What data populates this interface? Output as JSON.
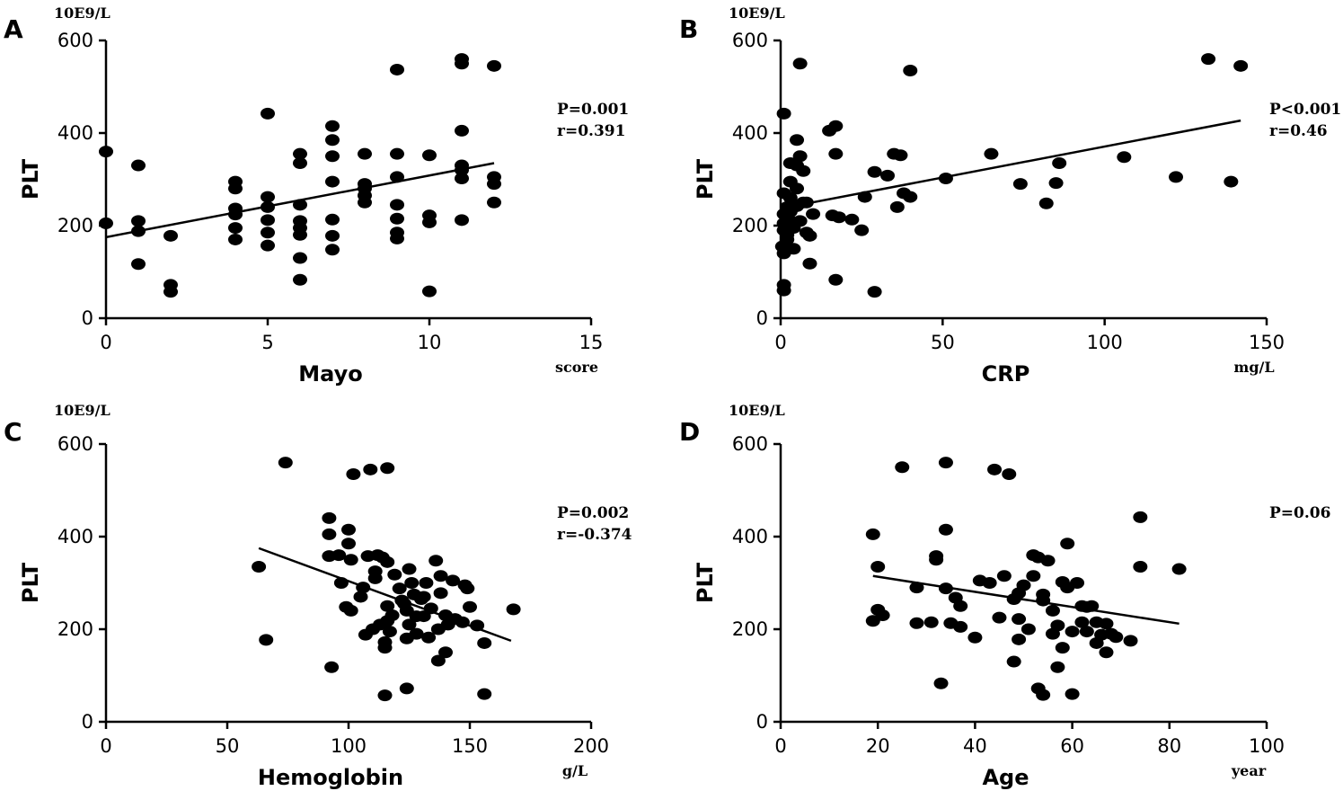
{
  "chart_data": [
    {
      "type": "scatter",
      "panel": "A",
      "y_unit": "10E9/L",
      "ylabel": "PLT",
      "xlabel": "Mayo",
      "x_unit": "score",
      "xlim": [
        0,
        15
      ],
      "ylim": [
        0,
        600
      ],
      "xticks": [
        "0",
        "5",
        "10",
        "15"
      ],
      "yticks": [
        "0",
        "200",
        "400",
        "600"
      ],
      "stats": [
        "P=0.001",
        "r=0.391"
      ],
      "regression": [
        [
          0,
          175
        ],
        [
          12,
          335
        ]
      ],
      "points": [
        [
          0,
          360
        ],
        [
          0,
          205
        ],
        [
          1,
          330
        ],
        [
          1,
          210
        ],
        [
          1,
          188
        ],
        [
          1,
          117
        ],
        [
          2,
          178
        ],
        [
          2,
          72
        ],
        [
          2,
          57
        ],
        [
          4,
          295
        ],
        [
          4,
          280
        ],
        [
          4,
          237
        ],
        [
          4,
          224
        ],
        [
          4,
          195
        ],
        [
          4,
          170
        ],
        [
          5,
          442
        ],
        [
          5,
          262
        ],
        [
          5,
          240
        ],
        [
          5,
          212
        ],
        [
          5,
          185
        ],
        [
          5,
          157
        ],
        [
          6,
          355
        ],
        [
          6,
          335
        ],
        [
          6,
          245
        ],
        [
          6,
          210
        ],
        [
          6,
          195
        ],
        [
          6,
          180
        ],
        [
          6,
          130
        ],
        [
          6,
          83
        ],
        [
          7,
          415
        ],
        [
          7,
          385
        ],
        [
          7,
          350
        ],
        [
          7,
          295
        ],
        [
          7,
          213
        ],
        [
          7,
          178
        ],
        [
          7,
          148
        ],
        [
          8,
          355
        ],
        [
          8,
          290
        ],
        [
          8,
          280
        ],
        [
          8,
          265
        ],
        [
          8,
          250
        ],
        [
          9,
          537
        ],
        [
          9,
          355
        ],
        [
          9,
          305
        ],
        [
          9,
          245
        ],
        [
          9,
          215
        ],
        [
          9,
          185
        ],
        [
          9,
          172
        ],
        [
          10,
          352
        ],
        [
          10,
          222
        ],
        [
          10,
          207
        ],
        [
          10,
          58
        ],
        [
          11,
          560
        ],
        [
          11,
          550
        ],
        [
          11,
          405
        ],
        [
          11,
          330
        ],
        [
          11,
          320
        ],
        [
          11,
          302
        ],
        [
          11,
          212
        ],
        [
          12,
          545
        ],
        [
          12,
          305
        ],
        [
          12,
          290
        ],
        [
          12,
          250
        ]
      ]
    },
    {
      "type": "scatter",
      "panel": "B",
      "y_unit": "10E9/L",
      "ylabel": "PLT",
      "xlabel": "CRP",
      "x_unit": "mg/L",
      "xlim": [
        0,
        150
      ],
      "ylim": [
        0,
        600
      ],
      "xticks": [
        "0",
        "50",
        "100",
        "150"
      ],
      "yticks": [
        "0",
        "200",
        "400",
        "600"
      ],
      "stats": [
        "P<0.001",
        "r=0.46"
      ],
      "regression": [
        [
          0,
          237
        ],
        [
          142,
          427
        ]
      ],
      "points": [
        [
          0.5,
          155
        ],
        [
          1,
          442
        ],
        [
          1,
          270
        ],
        [
          1,
          225
        ],
        [
          1,
          205
        ],
        [
          1,
          190
        ],
        [
          1,
          140
        ],
        [
          1,
          72
        ],
        [
          1,
          60
        ],
        [
          2,
          240
        ],
        [
          2,
          215
        ],
        [
          2,
          200
        ],
        [
          2,
          180
        ],
        [
          2,
          170
        ],
        [
          3,
          335
        ],
        [
          3,
          295
        ],
        [
          3,
          260
        ],
        [
          3,
          230
        ],
        [
          3,
          210
        ],
        [
          4,
          195
        ],
        [
          4,
          150
        ],
        [
          5,
          385
        ],
        [
          5,
          330
        ],
        [
          5,
          280
        ],
        [
          5,
          242
        ],
        [
          6,
          550
        ],
        [
          6,
          350
        ],
        [
          6,
          210
        ],
        [
          7,
          318
        ],
        [
          7,
          250
        ],
        [
          8,
          250
        ],
        [
          8,
          185
        ],
        [
          9,
          118
        ],
        [
          9,
          178
        ],
        [
          10,
          225
        ],
        [
          15,
          405
        ],
        [
          16,
          222
        ],
        [
          17,
          415
        ],
        [
          17,
          355
        ],
        [
          17,
          83
        ],
        [
          18,
          218
        ],
        [
          22,
          213
        ],
        [
          25,
          190
        ],
        [
          26,
          262
        ],
        [
          29,
          316
        ],
        [
          29,
          57
        ],
        [
          33,
          308
        ],
        [
          35,
          355
        ],
        [
          36,
          240
        ],
        [
          37,
          352
        ],
        [
          38,
          270
        ],
        [
          40,
          535
        ],
        [
          40,
          262
        ],
        [
          51,
          302
        ],
        [
          65,
          355
        ],
        [
          74,
          290
        ],
        [
          82,
          248
        ],
        [
          85,
          292
        ],
        [
          86,
          335
        ],
        [
          106,
          348
        ],
        [
          122,
          305
        ],
        [
          132,
          560
        ],
        [
          139,
          295
        ],
        [
          142,
          545
        ]
      ]
    },
    {
      "type": "scatter",
      "panel": "C",
      "y_unit": "10E9/L",
      "ylabel": "PLT",
      "xlabel": "Hemoglobin",
      "x_unit": "g/L",
      "xlim": [
        0,
        200
      ],
      "ylim": [
        0,
        600
      ],
      "xticks": [
        "0",
        "50",
        "100",
        "150",
        "200"
      ],
      "yticks": [
        "0",
        "200",
        "400",
        "600"
      ],
      "stats": [
        "P=0.002",
        "r=-0.374"
      ],
      "regression": [
        [
          63,
          375
        ],
        [
          167,
          175
        ]
      ],
      "points": [
        [
          63,
          335
        ],
        [
          66,
          177
        ],
        [
          74,
          560
        ],
        [
          92,
          440
        ],
        [
          92,
          405
        ],
        [
          92,
          358
        ],
        [
          93,
          118
        ],
        [
          96,
          360
        ],
        [
          97,
          300
        ],
        [
          99,
          248
        ],
        [
          100,
          415
        ],
        [
          100,
          385
        ],
        [
          101,
          350
        ],
        [
          101,
          240
        ],
        [
          102,
          535
        ],
        [
          105,
          270
        ],
        [
          106,
          290
        ],
        [
          107,
          188
        ],
        [
          108,
          358
        ],
        [
          109,
          545
        ],
        [
          110,
          200
        ],
        [
          111,
          325
        ],
        [
          111,
          310
        ],
        [
          112,
          360
        ],
        [
          113,
          210
        ],
        [
          114,
          355
        ],
        [
          115,
          172
        ],
        [
          115,
          160
        ],
        [
          115,
          57
        ],
        [
          116,
          548
        ],
        [
          116,
          345
        ],
        [
          116,
          250
        ],
        [
          116,
          218
        ],
        [
          117,
          195
        ],
        [
          118,
          230
        ],
        [
          119,
          318
        ],
        [
          121,
          288
        ],
        [
          122,
          262
        ],
        [
          123,
          255
        ],
        [
          124,
          240
        ],
        [
          124,
          180
        ],
        [
          124,
          72
        ],
        [
          125,
          330
        ],
        [
          125,
          210
        ],
        [
          126,
          300
        ],
        [
          127,
          275
        ],
        [
          128,
          228
        ],
        [
          128,
          190
        ],
        [
          130,
          265
        ],
        [
          131,
          270
        ],
        [
          131,
          228
        ],
        [
          132,
          300
        ],
        [
          133,
          182
        ],
        [
          134,
          245
        ],
        [
          136,
          348
        ],
        [
          137,
          200
        ],
        [
          137,
          132
        ],
        [
          138,
          315
        ],
        [
          138,
          278
        ],
        [
          140,
          150
        ],
        [
          140,
          230
        ],
        [
          141,
          210
        ],
        [
          143,
          305
        ],
        [
          144,
          222
        ],
        [
          147,
          215
        ],
        [
          148,
          295
        ],
        [
          149,
          288
        ],
        [
          150,
          248
        ],
        [
          153,
          208
        ],
        [
          156,
          170
        ],
        [
          156,
          60
        ],
        [
          168,
          243
        ]
      ]
    },
    {
      "type": "scatter",
      "panel": "D",
      "y_unit": "10E9/L",
      "ylabel": "PLT",
      "xlabel": "Age",
      "x_unit": "year",
      "xlim": [
        0,
        100
      ],
      "ylim": [
        0,
        600
      ],
      "xticks": [
        "0",
        "20",
        "40",
        "60",
        "80",
        "100"
      ],
      "yticks": [
        "0",
        "200",
        "400",
        "600"
      ],
      "stats": [
        "P=0.06"
      ],
      "regression": [
        [
          19,
          315
        ],
        [
          82,
          212
        ]
      ],
      "points": [
        [
          19,
          405
        ],
        [
          19,
          218
        ],
        [
          20,
          335
        ],
        [
          20,
          242
        ],
        [
          21,
          230
        ],
        [
          25,
          550
        ],
        [
          28,
          290
        ],
        [
          28,
          213
        ],
        [
          31,
          215
        ],
        [
          32,
          358
        ],
        [
          32,
          350
        ],
        [
          33,
          83
        ],
        [
          34,
          560
        ],
        [
          34,
          415
        ],
        [
          34,
          288
        ],
        [
          35,
          213
        ],
        [
          36,
          268
        ],
        [
          37,
          250
        ],
        [
          37,
          205
        ],
        [
          40,
          182
        ],
        [
          41,
          305
        ],
        [
          43,
          300
        ],
        [
          44,
          545
        ],
        [
          45,
          225
        ],
        [
          46,
          315
        ],
        [
          47,
          535
        ],
        [
          48,
          130
        ],
        [
          48,
          265
        ],
        [
          49,
          278
        ],
        [
          49,
          222
        ],
        [
          49,
          178
        ],
        [
          50,
          295
        ],
        [
          51,
          200
        ],
        [
          52,
          360
        ],
        [
          52,
          315
        ],
        [
          53,
          355
        ],
        [
          53,
          72
        ],
        [
          54,
          275
        ],
        [
          54,
          262
        ],
        [
          54,
          58
        ],
        [
          55,
          348
        ],
        [
          56,
          240
        ],
        [
          56,
          190
        ],
        [
          57,
          208
        ],
        [
          57,
          118
        ],
        [
          58,
          302
        ],
        [
          58,
          160
        ],
        [
          59,
          290
        ],
        [
          59,
          385
        ],
        [
          60,
          195
        ],
        [
          60,
          60
        ],
        [
          61,
          300
        ],
        [
          62,
          215
        ],
        [
          62,
          250
        ],
        [
          63,
          248
        ],
        [
          63,
          195
        ],
        [
          64,
          250
        ],
        [
          65,
          215
        ],
        [
          65,
          170
        ],
        [
          66,
          188
        ],
        [
          67,
          212
        ],
        [
          67,
          150
        ],
        [
          68,
          190
        ],
        [
          69,
          183
        ],
        [
          72,
          175
        ],
        [
          74,
          442
        ],
        [
          74,
          335
        ],
        [
          82,
          330
        ]
      ]
    }
  ]
}
